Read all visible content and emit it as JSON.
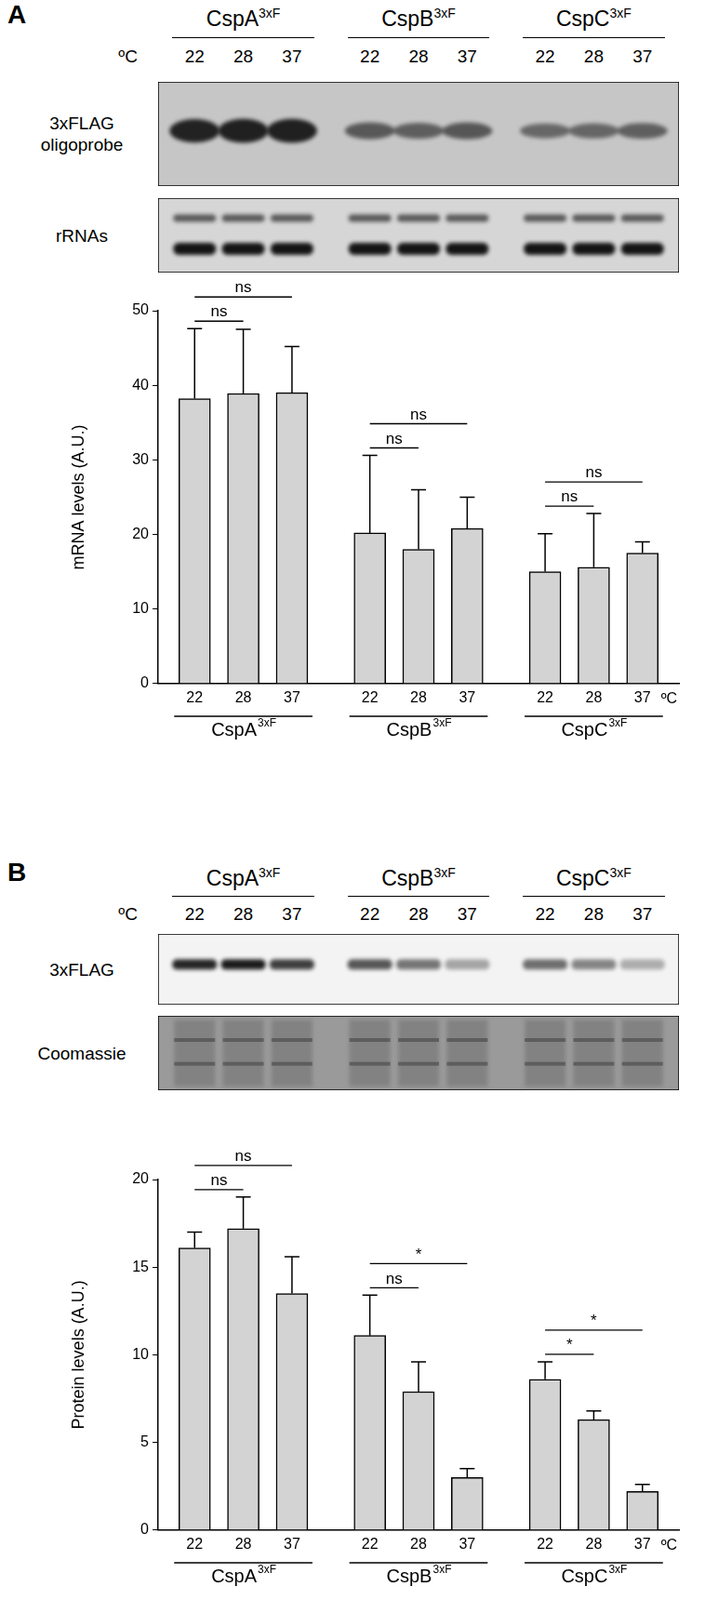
{
  "panel_labels": [
    "A",
    "B"
  ],
  "blots": [
    {
      "groups": [
        {
          "name": "CspA",
          "superscript": "3xF"
        },
        {
          "name": "CspB",
          "superscript": "3xF"
        },
        {
          "name": "CspC",
          "superscript": "3xF"
        }
      ],
      "lane_unit": "ºC",
      "lanes": [
        "22",
        "28",
        "37",
        "22",
        "28",
        "37",
        "22",
        "28",
        "37"
      ],
      "rows": [
        [
          "3xFLAG",
          "oligoprobe"
        ],
        [
          "rRNAs"
        ]
      ]
    },
    {
      "groups": [
        {
          "name": "CspA",
          "superscript": "3xF"
        },
        {
          "name": "CspB",
          "superscript": "3xF"
        },
        {
          "name": "CspC",
          "superscript": "3xF"
        }
      ],
      "lane_unit": "ºC",
      "lanes": [
        "22",
        "28",
        "37",
        "22",
        "28",
        "37",
        "22",
        "28",
        "37"
      ],
      "rows": [
        [
          "3xFLAG"
        ],
        [
          "Coomassie"
        ]
      ]
    }
  ],
  "chart_data": [
    {
      "type": "bar",
      "ylabel": "mRNA levels (A.U.)",
      "xlabel": "ºC",
      "categories": [
        "22",
        "28",
        "37",
        "22",
        "28",
        "37",
        "22",
        "28",
        "37"
      ],
      "groups": [
        {
          "name": "CspA",
          "superscript": "3xF"
        },
        {
          "name": "CspB",
          "superscript": "3xF"
        },
        {
          "name": "CspC",
          "superscript": "3xF"
        }
      ],
      "values": [
        38.2,
        38.9,
        39.0,
        20.2,
        18.0,
        20.8,
        15.0,
        15.6,
        17.5
      ],
      "errors": [
        9.4,
        8.6,
        6.2,
        10.4,
        8.0,
        4.2,
        5.1,
        7.2,
        1.5
      ],
      "color": "#d3d3d3",
      "ylim": [
        0,
        50
      ],
      "yticks": [
        0,
        10,
        20,
        30,
        40,
        50
      ],
      "grid": false,
      "significance": [
        {
          "from": 0,
          "to": 1,
          "label": "ns"
        },
        {
          "from": 0,
          "to": 2,
          "label": "ns"
        },
        {
          "from": 3,
          "to": 4,
          "label": "ns"
        },
        {
          "from": 3,
          "to": 5,
          "label": "ns"
        },
        {
          "from": 6,
          "to": 7,
          "label": "ns"
        },
        {
          "from": 6,
          "to": 8,
          "label": "ns"
        }
      ]
    },
    {
      "type": "bar",
      "ylabel": "Protein levels (A.U.)",
      "xlabel": "ºC",
      "categories": [
        "22",
        "28",
        "37",
        "22",
        "28",
        "37",
        "22",
        "28",
        "37"
      ],
      "groups": [
        {
          "name": "CspA",
          "superscript": "3xF"
        },
        {
          "name": "CspB",
          "superscript": "3xF"
        },
        {
          "name": "CspC",
          "superscript": "3xF"
        }
      ],
      "values": [
        16.1,
        17.2,
        13.5,
        11.1,
        7.9,
        3.0,
        8.6,
        6.3,
        2.2
      ],
      "errors": [
        0.9,
        1.8,
        2.1,
        2.3,
        1.7,
        0.5,
        1.0,
        0.5,
        0.4
      ],
      "color": "#d3d3d3",
      "ylim": [
        0,
        20
      ],
      "yticks": [
        0,
        5,
        10,
        15,
        20
      ],
      "grid": false,
      "significance": [
        {
          "from": 0,
          "to": 1,
          "label": "ns"
        },
        {
          "from": 0,
          "to": 2,
          "label": "ns"
        },
        {
          "from": 3,
          "to": 4,
          "label": "ns"
        },
        {
          "from": 3,
          "to": 5,
          "label": "*"
        },
        {
          "from": 6,
          "to": 7,
          "label": "*"
        },
        {
          "from": 6,
          "to": 8,
          "label": "*"
        }
      ]
    }
  ]
}
